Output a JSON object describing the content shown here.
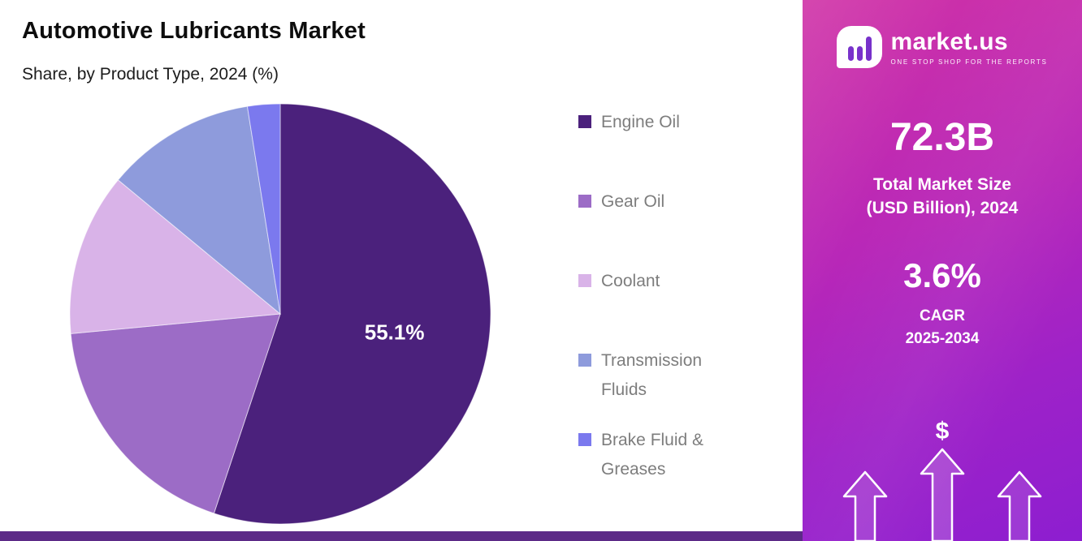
{
  "header": {
    "title": "Automotive Lubricants Market",
    "subtitle": "Share, by Product Type, 2024 (%)"
  },
  "chart_data": {
    "type": "pie",
    "title": "Automotive Lubricants Market",
    "subtitle": "Share, by Product Type, 2024 (%)",
    "unit": "%",
    "categories": [
      "Engine Oil",
      "Gear Oil",
      "Coolant",
      "Transmission Fluids",
      "Brake Fluid & Greases"
    ],
    "values": [
      55.1,
      18.4,
      12.5,
      11.5,
      2.5
    ],
    "colors": [
      "#4b217c",
      "#9c6cc6",
      "#d9b3e8",
      "#8e9bdc",
      "#7b79ee"
    ],
    "start_angle": 0,
    "direction": "clockwise",
    "shown_labels": [
      {
        "index": 0,
        "text": "55.1%"
      }
    ],
    "legend_position": "right"
  },
  "sidebar": {
    "logo_text": "market.us",
    "logo_tagline": "ONE STOP SHOP FOR THE REPORTS",
    "market_size_value": "72.3B",
    "market_size_label_line1": "Total Market Size",
    "market_size_label_line2": "(USD Billion), 2024",
    "cagr_value": "3.6%",
    "cagr_label_line1": "CAGR",
    "cagr_label_line2": "2025-2034",
    "dollar_symbol": "$"
  }
}
